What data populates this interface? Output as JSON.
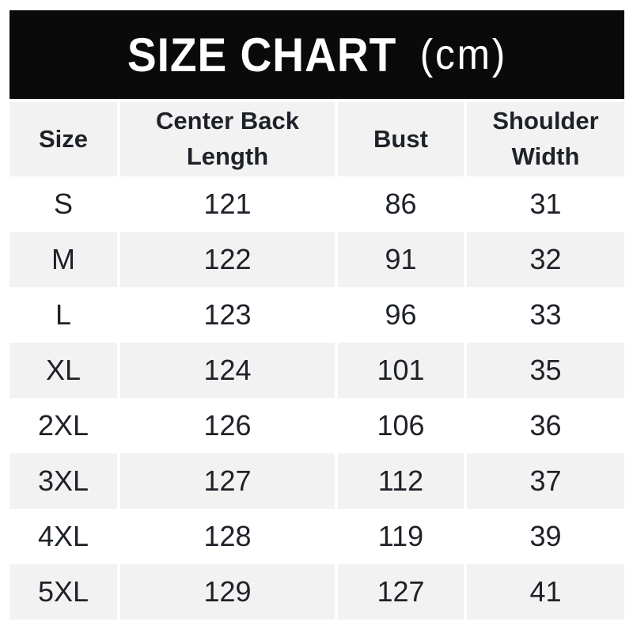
{
  "banner": {
    "title": "SIZE CHART",
    "unit": "(cm)",
    "background": "#0a0a0a",
    "text_color": "#ffffff"
  },
  "table": {
    "headers": [
      "Size",
      "Center Back\nLength",
      "Bust",
      "Shoulder\nWidth"
    ],
    "rows": [
      [
        "S",
        "121",
        "86",
        "31"
      ],
      [
        "M",
        "122",
        "91",
        "32"
      ],
      [
        "L",
        "123",
        "96",
        "33"
      ],
      [
        "XL",
        "124",
        "101",
        "35"
      ],
      [
        "2XL",
        "126",
        "106",
        "36"
      ],
      [
        "3XL",
        "127",
        "112",
        "37"
      ],
      [
        "4XL",
        "128",
        "119",
        "39"
      ],
      [
        "5XL",
        "129",
        "127",
        "41"
      ]
    ],
    "stripe_color": "#f2f2f2",
    "text_color": "#1e2228"
  },
  "chart_data": {
    "type": "table",
    "title": "SIZE CHART (cm)",
    "unit": "cm",
    "columns": [
      "Size",
      "Center Back Length",
      "Bust",
      "Shoulder Width"
    ],
    "rows": [
      [
        "S",
        121,
        86,
        31
      ],
      [
        "M",
        122,
        91,
        32
      ],
      [
        "L",
        123,
        96,
        33
      ],
      [
        "XL",
        124,
        101,
        35
      ],
      [
        "2XL",
        126,
        106,
        36
      ],
      [
        "3XL",
        127,
        112,
        37
      ],
      [
        "4XL",
        128,
        119,
        39
      ],
      [
        "5XL",
        129,
        127,
        41
      ]
    ],
    "layout": {
      "striped_rows": true,
      "header_background": "#f2f2f2",
      "banner_background": "#0a0a0a"
    }
  }
}
